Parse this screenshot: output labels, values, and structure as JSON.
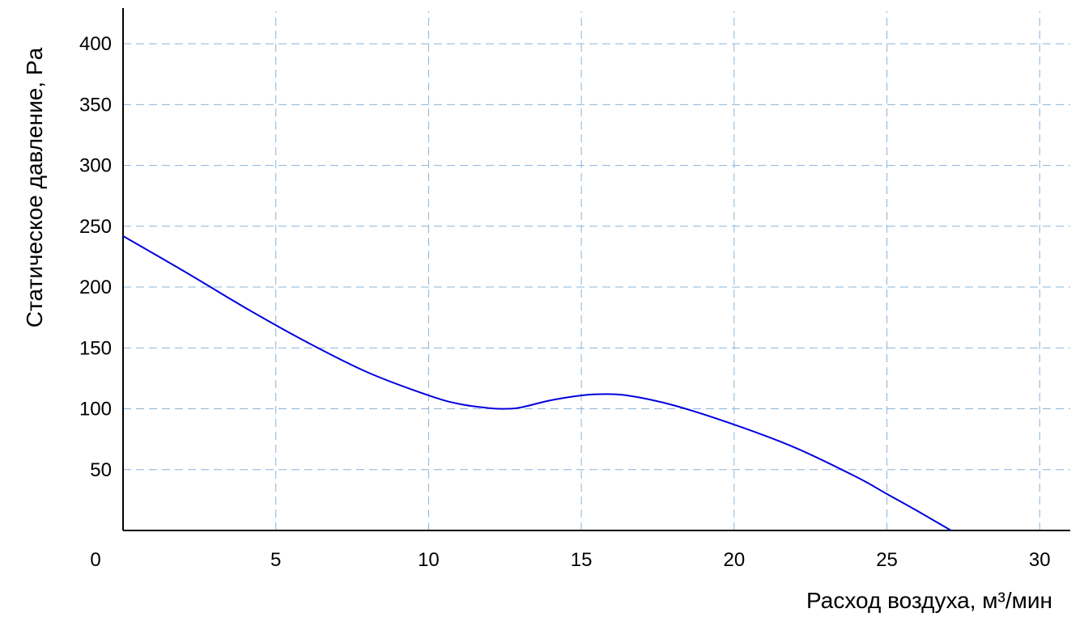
{
  "chart_data": {
    "type": "line",
    "xlabel": "Расход воздуха, м³/мин",
    "ylabel": "Статическое давление, Pa",
    "xlim": [
      0,
      31
    ],
    "ylim": [
      0,
      420
    ],
    "x_ticks": [
      0,
      5,
      10,
      15,
      20,
      25,
      30
    ],
    "x_tick_labels": [
      "0",
      "5",
      "10",
      "15",
      "20",
      "25",
      "30"
    ],
    "y_ticks": [
      50,
      100,
      150,
      200,
      250,
      300,
      350,
      400
    ],
    "y_tick_labels": [
      "50",
      "100",
      "150",
      "200",
      "250",
      "300",
      "350",
      "400"
    ],
    "grid": true,
    "series": [
      {
        "color": "#0000dd",
        "x": [
          0,
          2,
          4,
          6,
          8,
          10,
          11,
          12,
          12.5,
          13,
          14,
          15,
          15.6,
          16.5,
          18,
          20,
          22,
          24,
          25,
          26,
          27.1
        ],
        "y": [
          242,
          213,
          183,
          155,
          130,
          111,
          104,
          100.5,
          100,
          101,
          107,
          111,
          112,
          111,
          103,
          87,
          68,
          44,
          30,
          16,
          0
        ]
      }
    ]
  }
}
